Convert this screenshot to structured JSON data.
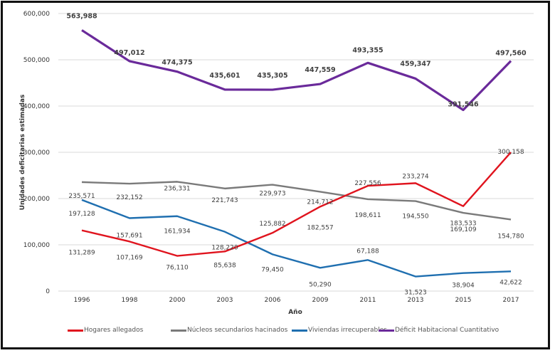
{
  "chart_data": {
    "type": "line",
    "title": "",
    "xlabel": "Año",
    "ylabel": "Unidades deficitarias estimadas",
    "categories": [
      "1996",
      "1998",
      "2000",
      "2003",
      "2006",
      "2009",
      "2011",
      "2013",
      "2015",
      "2017"
    ],
    "ylim": [
      0,
      600000
    ],
    "yticks": [
      0,
      100000,
      200000,
      300000,
      400000,
      500000,
      600000
    ],
    "ytick_labels": [
      "0",
      "100,000",
      "200,000",
      "300,000",
      "400,000",
      "500,000",
      "600,000"
    ],
    "grid": true,
    "legend_position": "bottom",
    "series": [
      {
        "name": "Hogares allegados",
        "color": "#e0141e",
        "values": [
          131289,
          107169,
          76110,
          85638,
          125882,
          182557,
          227556,
          233274,
          183533,
          300158
        ],
        "labels": [
          "131,289",
          "107,169",
          "76,110",
          "85,638",
          "125,882",
          "182,557",
          "227,556",
          "233,274",
          "183,533",
          "300,158"
        ]
      },
      {
        "name": "Núcleos secundarios hacinados",
        "color": "#7a7a7a",
        "values": [
          235571,
          232152,
          236331,
          221743,
          229973,
          214712,
          198611,
          194550,
          169109,
          154780
        ],
        "labels": [
          "235,571",
          "232,152",
          "236,331",
          "221,743",
          "229,973",
          "214,712",
          "198,611",
          "194,550",
          "169,109",
          "154,780"
        ]
      },
      {
        "name": "Viviendas irrecuperables",
        "color": "#1f6fb0",
        "values": [
          197128,
          157691,
          161934,
          128220,
          79450,
          50290,
          67188,
          31523,
          38904,
          42622
        ],
        "labels": [
          "197,128",
          "157,691",
          "161,934",
          "128,220",
          "79,450",
          "50,290",
          "67,188",
          "31,523",
          "38,904",
          "42,622"
        ]
      },
      {
        "name": "Déficit Habitacional Cuantitativo",
        "color": "#6a2a9a",
        "values": [
          563988,
          497012,
          474375,
          435601,
          435305,
          447559,
          493355,
          459347,
          391546,
          497560
        ],
        "labels": [
          "563,988",
          "497,012",
          "474,375",
          "435,601",
          "435,305",
          "447,559",
          "493,355",
          "459,347",
          "391,546",
          "497,560"
        ]
      }
    ]
  }
}
